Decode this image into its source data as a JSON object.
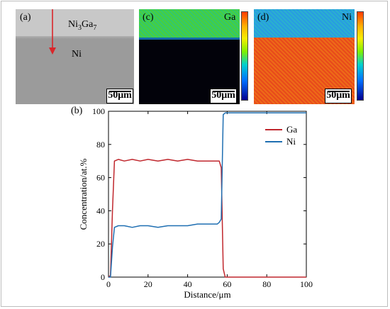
{
  "panels": {
    "a": {
      "label": "(a)",
      "phase_label_base": "Ni",
      "phase_sub1": "3",
      "phase_mid": "Ga",
      "phase_sub2": "7",
      "bottom_label": "Ni",
      "scale_label": "50μm"
    },
    "c": {
      "label": "(c)",
      "element": "Ga",
      "scale_label": "50μm"
    },
    "d": {
      "label": "(d)",
      "element": "Ni",
      "scale_label": "50μm"
    },
    "b": {
      "label": "(b)"
    }
  },
  "colors": {
    "ga_line": "#c0272d",
    "ni_line": "#1f6fb2",
    "arrow": "#d9262a",
    "sem_top": "#c7c7c7",
    "sem_bottom": "#9a9a9a",
    "map_c_top": "#3ec84a",
    "map_c_bottom": "#02020a",
    "map_d_top": "#2aa7e0",
    "map_d_bottom": "#e8541e"
  },
  "chart_data": {
    "type": "line",
    "xlabel": "Distance/μm",
    "ylabel": "Concentration/at.%",
    "xlim": [
      0,
      100
    ],
    "ylim": [
      0,
      100
    ],
    "xticks": [
      0,
      20,
      40,
      60,
      80,
      100
    ],
    "yticks": [
      0,
      20,
      40,
      60,
      80,
      100
    ],
    "legend_position": "top-right",
    "series": [
      {
        "name": "Ga",
        "color": "#c0272d",
        "x": [
          0,
          1,
          2,
          3,
          5,
          8,
          12,
          16,
          20,
          25,
          30,
          35,
          40,
          45,
          50,
          55,
          56,
          57,
          58,
          59,
          60,
          70,
          80,
          90,
          100
        ],
        "y": [
          0,
          1,
          40,
          70,
          71,
          70,
          71,
          70,
          71,
          70,
          71,
          70,
          71,
          70,
          70,
          70,
          70,
          66,
          5,
          0,
          0,
          0,
          0,
          0,
          0
        ]
      },
      {
        "name": "Ni",
        "color": "#1f6fb2",
        "x": [
          0,
          1,
          2,
          3,
          5,
          8,
          12,
          16,
          20,
          25,
          30,
          35,
          40,
          45,
          50,
          55,
          56,
          57,
          58,
          59,
          60,
          65,
          70,
          80,
          90,
          100
        ],
        "y": [
          0,
          0,
          18,
          30,
          31,
          31,
          30,
          31,
          31,
          30,
          31,
          31,
          31,
          32,
          32,
          32,
          33,
          35,
          98,
          99,
          99,
          99,
          99,
          99,
          99,
          99
        ]
      }
    ]
  }
}
